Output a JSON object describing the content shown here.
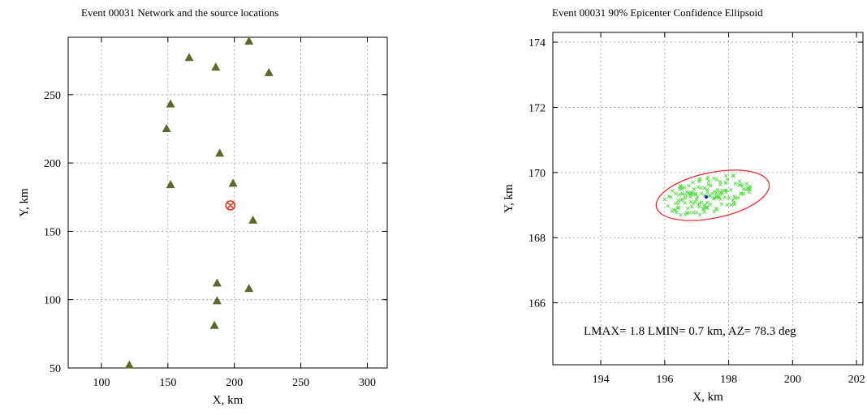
{
  "chart_data": [
    {
      "type": "scatter",
      "title": "Event 00031 Network and the source locations",
      "xlabel": "X, km",
      "ylabel": "Y, km",
      "xlim": [
        75,
        315
      ],
      "ylim": [
        50,
        292
      ],
      "xticks": [
        100,
        150,
        200,
        250,
        300
      ],
      "yticks": [
        50,
        100,
        150,
        200,
        250
      ],
      "grid": true,
      "colors": {
        "stations": "#5a6a2a",
        "source": "#e8331e"
      },
      "series": [
        {
          "marker": "triangle",
          "x": [
            121,
            166,
            186,
            211,
            226,
            152,
            149,
            189,
            199,
            152,
            214,
            187,
            211,
            187,
            185
          ],
          "y": [
            52,
            277,
            270,
            289,
            266,
            243,
            225,
            207,
            185,
            184,
            158,
            112,
            108,
            99,
            81
          ]
        },
        {
          "marker": "circle-x",
          "x": [
            197
          ],
          "y": [
            169
          ]
        }
      ]
    },
    {
      "type": "scatter",
      "title": "Event 00031 90% Epicenter Confidence   Ellipsoid",
      "xlabel": "X, km",
      "ylabel": "Y, km",
      "xlim": [
        192.5,
        202.2
      ],
      "ylim": [
        164.1,
        174.3
      ],
      "xticks": [
        194,
        196,
        198,
        200,
        202
      ],
      "yticks": [
        166,
        168,
        170,
        172,
        174
      ],
      "grid": true,
      "annotation": "LMAX= 1.8 LMIN= 0.7 km, AZ=  78.3 deg",
      "ellipse": {
        "center": [
          197.5,
          169.3
        ],
        "semi_major_km": 1.8,
        "semi_minor_km": 0.7,
        "azimuth_deg": 78.3,
        "color": "#e8333a"
      },
      "epicenter": {
        "x": 197.3,
        "y": 169.25,
        "color": "#2222cc"
      },
      "cloud": {
        "color": "#55dd44"
      }
    }
  ]
}
